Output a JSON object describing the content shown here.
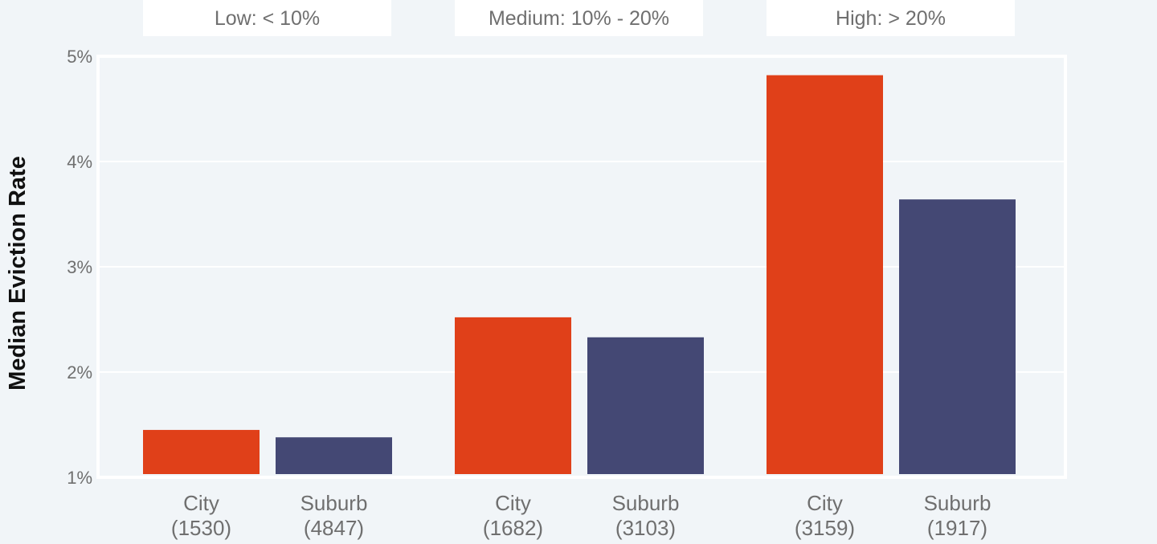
{
  "chart_data": {
    "type": "bar",
    "ylabel": "Median Eviction Rate",
    "xlabel": "",
    "ylim": [
      1,
      5
    ],
    "yticks": [
      1,
      2,
      3,
      4,
      5
    ],
    "ytick_labels": [
      "1%",
      "2%",
      "3%",
      "4%",
      "5%"
    ],
    "grid": true,
    "groups": [
      {
        "label": "Low: < 10%",
        "bars": [
          {
            "name": "City",
            "count": "(1530)",
            "value": 1.45
          },
          {
            "name": "Suburb",
            "count": "(4847)",
            "value": 1.38
          }
        ]
      },
      {
        "label": "Medium: 10% - 20%",
        "bars": [
          {
            "name": "City",
            "count": "(1682)",
            "value": 2.52
          },
          {
            "name": "Suburb",
            "count": "(3103)",
            "value": 2.33
          }
        ]
      },
      {
        "label": "High: > 20%",
        "bars": [
          {
            "name": "City",
            "count": "(3159)",
            "value": 4.82
          },
          {
            "name": "Suburb",
            "count": "(1917)",
            "value": 3.64
          }
        ]
      }
    ],
    "colors": {
      "City": "#e04019",
      "Suburb": "#444874"
    }
  }
}
